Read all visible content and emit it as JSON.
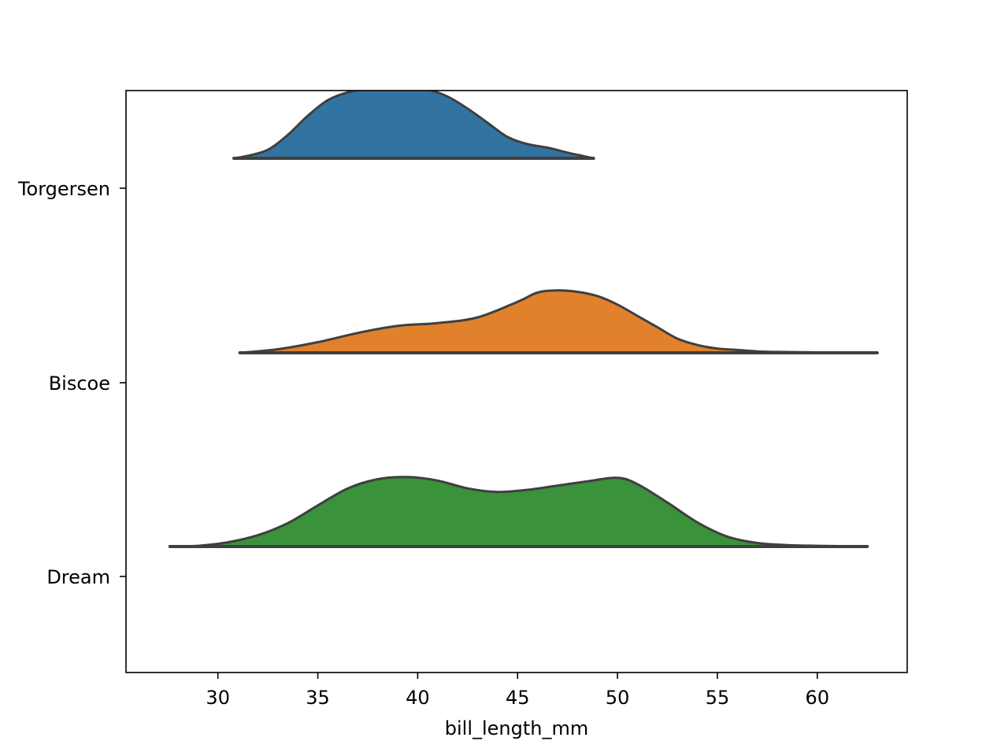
{
  "chart_data": {
    "type": "violin",
    "orientation": "horizontal",
    "split": "upper-half",
    "title": "",
    "xlabel": "bill_length_mm",
    "ylabel": "",
    "xlim": [
      25.4,
      64.5
    ],
    "xticks": [
      30,
      35,
      40,
      45,
      50,
      55,
      60
    ],
    "categories": [
      "Torgersen",
      "Biscoe",
      "Dream"
    ],
    "grid": false,
    "legend": "none",
    "series": [
      {
        "category": "Torgersen",
        "color": "#3274a1",
        "x": [
          30.8,
          31.5,
          32.5,
          33.5,
          34.5,
          35.5,
          36.5,
          37.5,
          38.5,
          39.5,
          40.5,
          41.5,
          42.5,
          43.5,
          44.5,
          45.5,
          46.5,
          47.5,
          48.3,
          48.8
        ],
        "density": [
          0.0,
          0.035,
          0.12,
          0.33,
          0.6,
          0.82,
          0.93,
          0.99,
          1.0,
          1.0,
          0.97,
          0.87,
          0.7,
          0.5,
          0.3,
          0.2,
          0.15,
          0.08,
          0.03,
          0.0
        ]
      },
      {
        "category": "Biscoe",
        "color": "#e1812c",
        "x": [
          31.1,
          33,
          35,
          37,
          39,
          41,
          43,
          45,
          46,
          47,
          48,
          49,
          50,
          51,
          52,
          53,
          54,
          55,
          56,
          57,
          58,
          60,
          62,
          63
        ],
        "density": [
          0.0,
          0.05,
          0.15,
          0.28,
          0.38,
          0.42,
          0.5,
          0.72,
          0.85,
          0.88,
          0.86,
          0.8,
          0.68,
          0.52,
          0.36,
          0.2,
          0.11,
          0.06,
          0.04,
          0.02,
          0.012,
          0.006,
          0.002,
          0.0
        ]
      },
      {
        "category": "Dream",
        "color": "#3a923a",
        "x": [
          27.6,
          29,
          30.5,
          32,
          33.5,
          35,
          36.5,
          38,
          39.5,
          41,
          42.5,
          44,
          45.5,
          47,
          48.5,
          50,
          51,
          52.5,
          54,
          55.5,
          57,
          58.5,
          60,
          62.5
        ],
        "density": [
          0.0,
          0.01,
          0.06,
          0.16,
          0.33,
          0.58,
          0.82,
          0.95,
          0.98,
          0.93,
          0.82,
          0.77,
          0.8,
          0.86,
          0.92,
          0.97,
          0.88,
          0.62,
          0.34,
          0.14,
          0.05,
          0.02,
          0.01,
          0.0
        ]
      }
    ]
  }
}
